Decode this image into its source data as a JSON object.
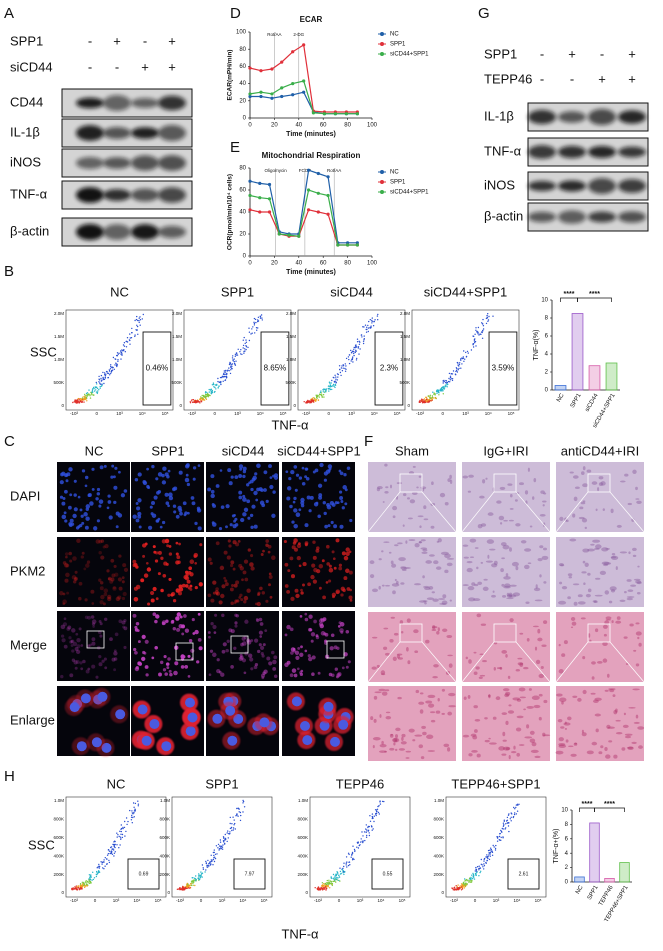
{
  "panel_labels": [
    "A",
    "B",
    "C",
    "D",
    "E",
    "F",
    "G",
    "H"
  ],
  "blot_a": {
    "conditions": [
      {
        "name": "SPP1",
        "signs": [
          "-",
          "+",
          "-",
          "+"
        ]
      },
      {
        "name": "siCD44",
        "signs": [
          "-",
          "-",
          "+",
          "+"
        ]
      }
    ],
    "proteins": [
      "CD44",
      "IL-1β",
      "iNOS",
      "TNF-α",
      "β-actin"
    ]
  },
  "blot_g": {
    "conditions": [
      {
        "name": "SPP1",
        "signs": [
          "-",
          "+",
          "-",
          "+"
        ]
      },
      {
        "name": "TEPP46",
        "signs": [
          "-",
          "-",
          "+",
          "+"
        ]
      }
    ],
    "proteins": [
      "IL-1β",
      "TNF-α",
      "iNOS",
      "β-actin"
    ]
  },
  "flow_b": {
    "groups": [
      "NC",
      "SPP1",
      "siCD44",
      "siCD44+SPP1"
    ],
    "gates": [
      "0.46%",
      "8.65%",
      "2.3%",
      "3.59%"
    ],
    "y_label": "SSC",
    "x_label": "TNF-α",
    "y_ticks": [
      "2.0M",
      "1.5M",
      "1.0M",
      "500K",
      "0"
    ],
    "x_ticks": [
      "-10³",
      "0",
      "10³",
      "10⁴",
      "10⁵"
    ]
  },
  "if_c": {
    "groups": [
      "NC",
      "SPP1",
      "siCD44",
      "siCD44+SPP1"
    ],
    "rows": [
      "DAPI",
      "PKM2",
      "Merge",
      "Enlarge"
    ]
  },
  "histo_f": {
    "groups": [
      "Sham",
      "IgG+IRI",
      "antiCD44+IRI"
    ]
  },
  "flow_h": {
    "groups": [
      "NC",
      "SPP1",
      "TEPP46",
      "TEPP46+SPP1"
    ],
    "gates": [
      "0.69",
      "7.97",
      "0.55",
      "2.61"
    ],
    "y_label": "SSC",
    "x_label": "TNF-α",
    "y_ticks": [
      "1.0M",
      "800K",
      "600K",
      "400K",
      "200K",
      "0"
    ],
    "x_ticks": [
      "-10³",
      "0",
      "10³",
      "10⁴",
      "10⁵"
    ]
  },
  "chart_data": [
    {
      "type": "line",
      "title": "ECAR",
      "x_label": "Time (minutes)",
      "y_label": "ECAR(mPH/min)",
      "x": [
        0,
        9,
        18,
        26,
        35,
        44,
        52,
        61,
        70,
        79,
        88
      ],
      "series": [
        {
          "name": "NC",
          "color": "#1f5fa8",
          "values": [
            25,
            25,
            23,
            25,
            27,
            30,
            7,
            5,
            5,
            5,
            5
          ]
        },
        {
          "name": "SPP1",
          "color": "#e0303a",
          "values": [
            58,
            55,
            57,
            65,
            77,
            85,
            8,
            7,
            7,
            7,
            7
          ]
        },
        {
          "name": "siCD44+SPP1",
          "color": "#3aae4a",
          "values": [
            28,
            30,
            28,
            35,
            40,
            43,
            6,
            5,
            5,
            5,
            5
          ]
        }
      ],
      "xlim": [
        0,
        100
      ],
      "ylim": [
        0,
        100
      ],
      "xticks": [
        0,
        20,
        40,
        60,
        80,
        100
      ],
      "yticks": [
        0,
        20,
        40,
        60,
        80,
        100
      ],
      "annotations": [
        {
          "text": "Rot/AA",
          "x": 20
        },
        {
          "text": "2-DG",
          "x": 40
        }
      ]
    },
    {
      "type": "line",
      "title": "Mitochondrial Respiration",
      "x_label": "Time (minutes)",
      "y_label": "OCR(pmol/min/10⁴ cells)",
      "x": [
        0,
        8,
        16,
        24,
        32,
        40,
        48,
        56,
        64,
        72,
        80,
        88
      ],
      "series": [
        {
          "name": "NC",
          "color": "#1f5fa8",
          "values": [
            68,
            66,
            65,
            22,
            20,
            20,
            78,
            75,
            72,
            12,
            12,
            12
          ]
        },
        {
          "name": "SPP1",
          "color": "#e0303a",
          "values": [
            42,
            40,
            40,
            20,
            18,
            18,
            42,
            40,
            38,
            10,
            10,
            10
          ]
        },
        {
          "name": "siCD44+SPP1",
          "color": "#3aae4a",
          "values": [
            55,
            53,
            52,
            20,
            19,
            18,
            60,
            57,
            55,
            10,
            10,
            10
          ]
        }
      ],
      "xlim": [
        0,
        100
      ],
      "ylim": [
        0,
        80
      ],
      "xticks": [
        0,
        20,
        40,
        60,
        80,
        100
      ],
      "yticks": [
        0,
        20,
        40,
        60,
        80
      ],
      "annotations": [
        {
          "text": "Oligomycin",
          "x": 21
        },
        {
          "text": "FCCP",
          "x": 45
        },
        {
          "text": "Rot/AA",
          "x": 69
        }
      ]
    },
    {
      "type": "bar",
      "y_label": "TNF-α(%)",
      "categories": [
        "NC",
        "SPP1",
        "siCD44",
        "siCD44+SPP1"
      ],
      "values": [
        0.5,
        8.5,
        2.7,
        3.0
      ],
      "colors": [
        "#3b6fd6",
        "#9b59c9",
        "#d65ca8",
        "#5fbf4a"
      ],
      "ylim": [
        0,
        10
      ],
      "yticks": [
        0,
        2,
        4,
        6,
        8,
        10
      ],
      "annotations": [
        "****",
        "****"
      ]
    },
    {
      "type": "bar",
      "y_label": "TNF-α+(%)",
      "categories": [
        "NC",
        "SPP1",
        "TEPP46",
        "TEPP46+SPP1"
      ],
      "values": [
        0.7,
        8.2,
        0.5,
        2.7
      ],
      "colors": [
        "#3b6fd6",
        "#9b59c9",
        "#d65ca8",
        "#5fbf4a"
      ],
      "ylim": [
        0,
        10
      ],
      "yticks": [
        0,
        2,
        4,
        6,
        8,
        10
      ],
      "annotations": [
        "****",
        "****"
      ]
    }
  ]
}
